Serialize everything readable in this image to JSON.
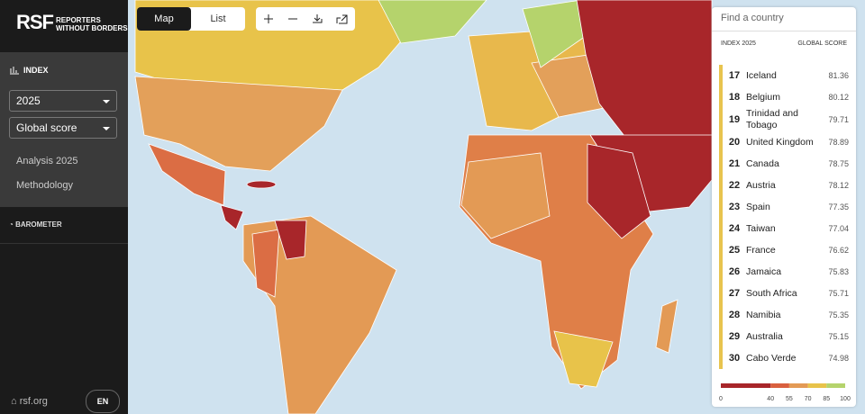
{
  "sidebar": {
    "logo_mark": "RSF",
    "logo_text": [
      "REPORTERS",
      "WITHOUT BORDERS"
    ],
    "index_label": "INDEX",
    "year": "2025",
    "score_type": "Global score",
    "links": [
      "Analysis 2025",
      "Methodology"
    ],
    "barometer": "BAROMETER",
    "site": "rsf.org",
    "language": "EN"
  },
  "toolbar": {
    "tabs": [
      "Map",
      "List"
    ]
  },
  "search": {
    "placeholder": "Find a country"
  },
  "ranking": {
    "header": [
      "INDEX 2025",
      "GLOBAL SCORE"
    ],
    "rows": [
      {
        "rank": 17,
        "country": "Iceland",
        "score": 81.36
      },
      {
        "rank": 18,
        "country": "Belgium",
        "score": 80.12
      },
      {
        "rank": 19,
        "country": "Trinidad and Tobago",
        "score": 79.71
      },
      {
        "rank": 20,
        "country": "United Kingdom",
        "score": 78.89
      },
      {
        "rank": 21,
        "country": "Canada",
        "score": 78.75
      },
      {
        "rank": 22,
        "country": "Austria",
        "score": 78.12
      },
      {
        "rank": 23,
        "country": "Spain",
        "score": 77.35
      },
      {
        "rank": 24,
        "country": "Taiwan",
        "score": 77.04
      },
      {
        "rank": 25,
        "country": "France",
        "score": 76.62
      },
      {
        "rank": 26,
        "country": "Jamaica",
        "score": 75.83
      },
      {
        "rank": 27,
        "country": "South Africa",
        "score": 75.71
      },
      {
        "rank": 28,
        "country": "Namibia",
        "score": 75.35
      },
      {
        "rank": 29,
        "country": "Australia",
        "score": 75.15
      },
      {
        "rank": 30,
        "country": "Cabo Verde",
        "score": 74.98
      }
    ]
  },
  "legend": {
    "ticks": [
      0,
      40,
      55,
      70,
      85,
      100
    ]
  }
}
